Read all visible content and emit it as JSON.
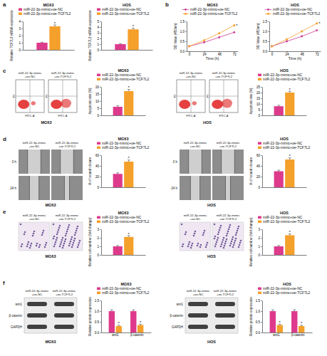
{
  "chart_data": [
    {
      "type": "bar",
      "title": "MG63",
      "y_label": "Relative TCF7L2 mRNA expression",
      "categories": [
        null
      ],
      "series": [
        {
          "name": "miR-22-3p-mimic+oe-NC",
          "color": "#dd3a8c",
          "values": [
            1.0
          ],
          "errors": [
            0.08
          ]
        },
        {
          "name": "miR-22-3p-mimic+oe-TCF7L2",
          "color": "#f4a02b",
          "values": [
            3.3
          ],
          "errors": [
            0.2
          ]
        }
      ],
      "ylim": [
        0,
        4
      ],
      "yticks": [
        0,
        1,
        2,
        3,
        4
      ],
      "legend": "top",
      "annotation": "*"
    },
    {
      "type": "bar",
      "title": "HOS",
      "y_label": "Relative TCF7L2 mRNA expression",
      "categories": [
        null
      ],
      "series": [
        {
          "name": "miR-22-3p-mimic+oe-NC",
          "color": "#dd3a8c",
          "values": [
            1.0
          ],
          "errors": [
            0.1
          ]
        },
        {
          "name": "miR-22-3p-mimic+oe-TCF7L2",
          "color": "#f4a02b",
          "values": [
            3.6
          ],
          "errors": [
            0.2
          ]
        }
      ],
      "ylim": [
        0,
        5
      ],
      "yticks": [
        0,
        1,
        2,
        3,
        4,
        5
      ],
      "legend": "top",
      "annotation": "*"
    },
    {
      "type": "line",
      "title": "MG63",
      "x_label": "Time (h)",
      "y_label": "OD Value (450nm)",
      "x": [
        0,
        24,
        48,
        72
      ],
      "xlim": [
        -4,
        78
      ],
      "xticks": [
        0,
        24,
        48,
        72
      ],
      "ylim": [
        0,
        1.5
      ],
      "yticks": [
        {
          "value": 0,
          "label": "0.0"
        },
        0.5,
        {
          "value": 1,
          "label": "1.0"
        },
        1.5
      ],
      "series": [
        {
          "name": "miR-22-3p-mimic+oe-NC",
          "color": "#c8378f",
          "marker": "circle",
          "line_style": "solid",
          "values": [
            0.25,
            0.45,
            0.7,
            0.95
          ],
          "errors": [
            0.02,
            0.03,
            0.04,
            0.04
          ]
        },
        {
          "name": "miR-22-3p-mimic+oe-TCF7L2",
          "color": "#f4a02b",
          "marker": "square",
          "line_style": "solid",
          "values": [
            0.25,
            0.55,
            0.9,
            1.3
          ],
          "errors": [
            0.02,
            0.03,
            0.04,
            0.05
          ]
        }
      ],
      "legend": "top",
      "annotation": "*"
    },
    {
      "type": "line",
      "title": "HOS",
      "x_label": "Time (h)",
      "y_label": "OD Value (450nm)",
      "x": [
        0,
        24,
        48,
        72
      ],
      "xlim": [
        -4,
        78
      ],
      "xticks": [
        0,
        24,
        48,
        72
      ],
      "ylim": [
        0,
        1.5
      ],
      "yticks": [
        {
          "value": 0,
          "label": "0.0"
        },
        0.5,
        {
          "value": 1,
          "label": "1.0"
        },
        1.5
      ],
      "series": [
        {
          "name": "miR-22-3p-mimic+oe-NC",
          "color": "#c8378f",
          "marker": "circle",
          "line_style": "solid",
          "values": [
            0.25,
            0.5,
            0.75,
            1.05
          ],
          "errors": [
            0.02,
            0.03,
            0.04,
            0.04
          ]
        },
        {
          "name": "miR-22-3p-mimic+oe-TCF7L2",
          "color": "#f4a02b",
          "marker": "square",
          "line_style": "solid",
          "values": [
            0.25,
            0.6,
            1.0,
            1.4
          ],
          "errors": [
            0.02,
            0.03,
            0.04,
            0.05
          ]
        }
      ],
      "legend": "top",
      "annotation": "*"
    },
    {
      "type": "bar",
      "title": "MG63",
      "y_label": "Apoptosis rate (%)",
      "categories": [
        null
      ],
      "series": [
        {
          "name": "miR-22-3p-mimic+oe-NC",
          "color": "#dd3a8c",
          "values": [
            6
          ],
          "errors": [
            0.8
          ]
        },
        {
          "name": "miR-22-3p-mimic+oe-TCF7L2",
          "color": "#f4a02b",
          "values": [
            17
          ],
          "errors": [
            1.2
          ]
        }
      ],
      "ylim": [
        0,
        20
      ],
      "yticks": [
        0,
        5,
        10,
        15,
        20
      ],
      "legend": "top",
      "annotation": "*"
    },
    {
      "type": "bar",
      "title": "HOS",
      "y_label": "Apoptosis rate (%)",
      "categories": [
        null
      ],
      "series": [
        {
          "name": "miR-22-3p-mimic+oe-NC",
          "color": "#dd3a8c",
          "values": [
            8
          ],
          "errors": [
            0.8
          ]
        },
        {
          "name": "miR-22-3p-mimic+oe-TCF7L2",
          "color": "#f4a02b",
          "values": [
            20
          ],
          "errors": [
            1.2
          ]
        }
      ],
      "ylim": [
        0,
        25
      ],
      "yticks": [
        0,
        5,
        10,
        15,
        20,
        25
      ],
      "legend": "top",
      "annotation": "*"
    },
    {
      "type": "bar",
      "title": "MG63",
      "y_label": "% of wound closure",
      "categories": [
        null
      ],
      "series": [
        {
          "name": "miR-22-3p-mimic+oe-NC",
          "color": "#dd3a8c",
          "values": [
            25
          ],
          "errors": [
            2
          ]
        },
        {
          "name": "miR-22-3p-mimic+oe-TCF7L2",
          "color": "#f4a02b",
          "values": [
            48
          ],
          "errors": [
            3
          ]
        }
      ],
      "ylim": [
        0,
        60
      ],
      "yticks": [
        0,
        20,
        40,
        60
      ],
      "legend": "top",
      "annotation": "*"
    },
    {
      "type": "bar",
      "title": "HOS",
      "y_label": "% of wound closure",
      "categories": [
        null
      ],
      "series": [
        {
          "name": "miR-22-3p-mimic+oe-NC",
          "color": "#dd3a8c",
          "values": [
            30
          ],
          "errors": [
            2
          ]
        },
        {
          "name": "miR-22-3p-mimic+oe-TCF7L2",
          "color": "#f4a02b",
          "values": [
            52
          ],
          "errors": [
            3
          ]
        }
      ],
      "ylim": [
        0,
        60
      ],
      "yticks": [
        0,
        20,
        40,
        60
      ],
      "legend": "top",
      "annotation": "*"
    },
    {
      "type": "bar",
      "title": "MG63",
      "y_label": "Relative cell number (fold change)",
      "categories": [
        null
      ],
      "series": [
        {
          "name": "miR-22-3p-mimic+oe-NC",
          "color": "#dd3a8c",
          "values": [
            1.0
          ],
          "errors": [
            0.1
          ]
        },
        {
          "name": "miR-22-3p-mimic+oe-TCF7L2",
          "color": "#f4a02b",
          "values": [
            2.1
          ],
          "errors": [
            0.15
          ]
        }
      ],
      "ylim": [
        0,
        3
      ],
      "yticks": [
        0,
        1,
        2,
        3
      ],
      "legend": "top",
      "annotation": "*"
    },
    {
      "type": "bar",
      "title": "HOS",
      "y_label": "Relative cell number (fold change)",
      "categories": [
        null
      ],
      "series": [
        {
          "name": "miR-22-3p-mimic+oe-NC",
          "color": "#dd3a8c",
          "values": [
            1.0
          ],
          "errors": [
            0.1
          ]
        },
        {
          "name": "miR-22-3p-mimic+oe-TCF7L2",
          "color": "#f4a02b",
          "values": [
            2.3
          ],
          "errors": [
            0.15
          ]
        }
      ],
      "ylim": [
        0,
        3
      ],
      "yticks": [
        0,
        1,
        2,
        3
      ],
      "legend": "top",
      "annotation": "*"
    },
    {
      "type": "bar",
      "title": "MG63",
      "y_label": "Relative protein expression",
      "categories": [
        "wnt1",
        "β-catenin"
      ],
      "series": [
        {
          "name": "miR-22-3p-mimic+oe-NC",
          "color": "#dd3a8c",
          "values": [
            1.0,
            1.0
          ],
          "errors": [
            0.06,
            0.06
          ]
        },
        {
          "name": "miR-22-3p-mimic+oe-TCF7L2",
          "color": "#f4a02b",
          "values": [
            0.3,
            0.35
          ],
          "errors": [
            0.04,
            0.04
          ]
        }
      ],
      "ylim": [
        0,
        1.5
      ],
      "yticks": [
        {
          "value": 0,
          "label": "0.0"
        },
        0.5,
        {
          "value": 1,
          "label": "1.0"
        },
        1.5
      ],
      "legend": "top",
      "annotation": "*"
    },
    {
      "type": "bar",
      "title": "HOS",
      "y_label": "Relative protein expression",
      "categories": [
        "wnt1",
        "β-catenin"
      ],
      "series": [
        {
          "name": "miR-22-3p-mimic+oe-NC",
          "color": "#dd3a8c",
          "values": [
            1.0,
            1.0
          ],
          "errors": [
            0.06,
            0.06
          ]
        },
        {
          "name": "miR-22-3p-mimic+oe-TCF7L2",
          "color": "#f4a02b",
          "values": [
            0.35,
            0.3
          ],
          "errors": [
            0.04,
            0.04
          ]
        }
      ],
      "ylim": [
        0,
        1.5
      ],
      "yticks": [
        {
          "value": 0,
          "label": "0.0"
        },
        0.5,
        {
          "value": 1,
          "label": "1.0"
        },
        1.5
      ],
      "legend": "top",
      "annotation": "*"
    }
  ],
  "figure": {
    "panel_letters": [
      "a",
      "b",
      "c",
      "d",
      "e",
      "f"
    ],
    "flow": [
      {
        "cell_line": "MG63",
        "columns": [
          [
            "miR-22-3p-mimic",
            "+oe-NC"
          ],
          [
            "miR-22-3p-mimic",
            "+oe-TCF7L2"
          ]
        ],
        "x_label": "FITC-A",
        "y_label": "PI"
      },
      {
        "cell_line": "HOS",
        "columns": [
          [
            "miR-22-3p-mimic",
            "+oe-NC"
          ],
          [
            "miR-22-3p-mimic",
            "+oe-TCF7L2"
          ]
        ],
        "x_label": "FITC-A",
        "y_label": "PI"
      }
    ],
    "wound": [
      {
        "cell_line": "MG63",
        "columns": [
          [
            "miR-22-3p-mimic",
            "+oe-NC"
          ],
          [
            "miR-22-3p-mimic",
            "+oe-TCF7L2"
          ]
        ],
        "rows": [
          "0 h",
          "24 h"
        ]
      },
      {
        "cell_line": "HOS",
        "columns": [
          [
            "miR-22-3p-mimic",
            "+oe-NC"
          ],
          [
            "miR-22-3p-mimic",
            "+oe-TCF7L2"
          ]
        ],
        "rows": [
          "0 h",
          "24 h"
        ]
      }
    ],
    "transwell": [
      {
        "cell_line": "MG63",
        "columns": [
          [
            "miR-22-3p-mimic",
            "+oe-NC"
          ],
          [
            "miR-22-3p-mimic",
            "+oe-TCF7L2"
          ]
        ]
      },
      {
        "cell_line": "HOS",
        "columns": [
          [
            "miR-22-3p-mimic",
            "+oe-NC"
          ],
          [
            "miR-22-3p-mimic",
            "+oe-TCF7L2"
          ]
        ]
      }
    ],
    "blot": [
      {
        "cell_line": "MG63",
        "columns": [
          [
            "miR-22-3p-mimic",
            "+oe-NC"
          ],
          [
            "miR-22-3p-mimic",
            "+oe-TCF7L2"
          ]
        ],
        "rows": [
          "wnt1",
          "β-catenin",
          "GAPDH"
        ]
      },
      {
        "cell_line": "HOS",
        "columns": [
          [
            "miR-22-3p-mimic",
            "+oe-NC"
          ],
          [
            "miR-22-3p-mimic",
            "+oe-TCF7L2"
          ]
        ],
        "rows": [
          "wnt1",
          "β-catenin",
          "GAPDH"
        ]
      }
    ]
  }
}
